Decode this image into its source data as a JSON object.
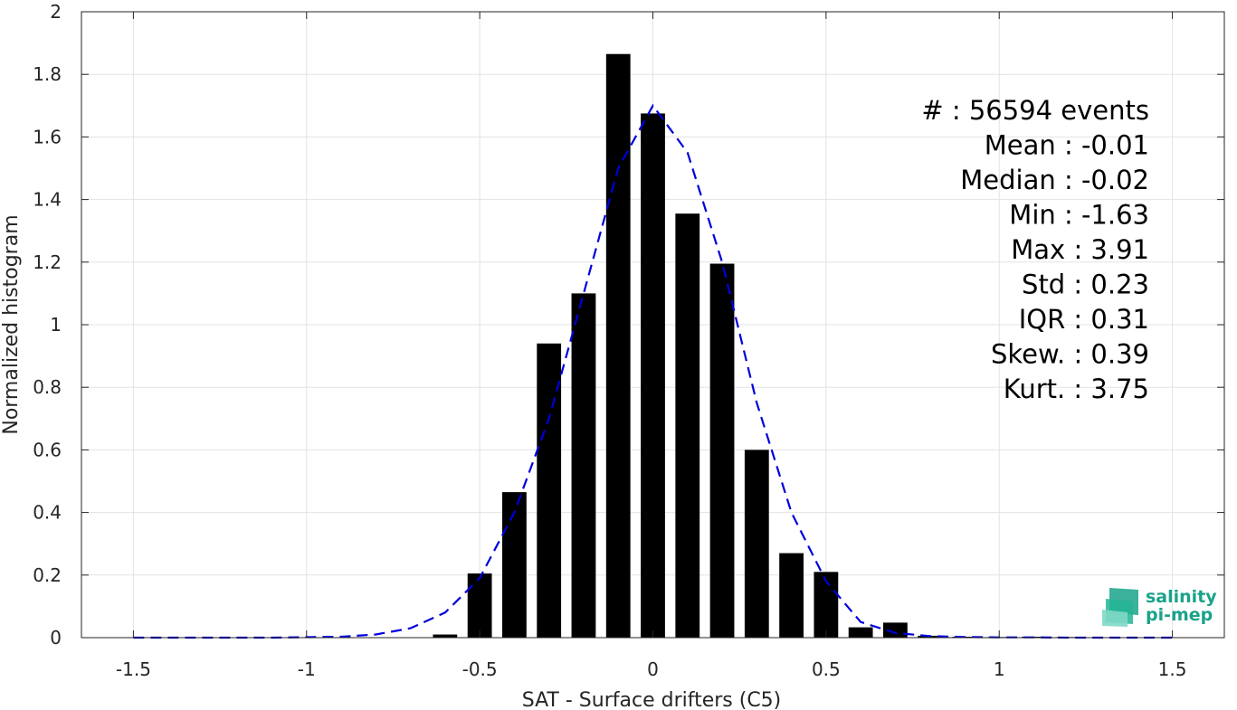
{
  "chart_data": {
    "type": "bar",
    "title": "",
    "xlabel": "SAT - Surface drifters (C5)",
    "ylabel": "Normalized histogram",
    "xlim": [
      -1.65,
      1.65
    ],
    "ylim": [
      0,
      2
    ],
    "xticks": [
      -1.5,
      -1,
      -0.5,
      0,
      0.5,
      1,
      1.5
    ],
    "xtick_labels": [
      "-1.5",
      "-1",
      "-0.5",
      "0",
      "0.5",
      "1",
      "1.5"
    ],
    "yticks": [
      0,
      0.2,
      0.4,
      0.6,
      0.8,
      1,
      1.2,
      1.4,
      1.6,
      1.8,
      2
    ],
    "ytick_labels": [
      "0",
      "0.2",
      "0.4",
      "0.6",
      "0.8",
      "1",
      "1.2",
      "1.4",
      "1.6",
      "1.8",
      "2"
    ],
    "grid": true,
    "bar_color": "#000000",
    "bar_width": 0.07,
    "bars": [
      {
        "x": -0.6,
        "y": 0.01
      },
      {
        "x": -0.5,
        "y": 0.205
      },
      {
        "x": -0.4,
        "y": 0.465
      },
      {
        "x": -0.3,
        "y": 0.94
      },
      {
        "x": -0.2,
        "y": 1.1
      },
      {
        "x": -0.1,
        "y": 1.865
      },
      {
        "x": 0.0,
        "y": 1.675
      },
      {
        "x": 0.1,
        "y": 1.355
      },
      {
        "x": 0.2,
        "y": 1.195
      },
      {
        "x": 0.3,
        "y": 0.6
      },
      {
        "x": 0.4,
        "y": 0.27
      },
      {
        "x": 0.5,
        "y": 0.21
      },
      {
        "x": 0.6,
        "y": 0.033
      },
      {
        "x": 0.7,
        "y": 0.048
      },
      {
        "x": 0.8,
        "y": 0.006
      },
      {
        "x": 0.9,
        "y": 0.003
      },
      {
        "x": 1.0,
        "y": 0.002
      },
      {
        "x": 1.1,
        "y": 0.003
      },
      {
        "x": 1.2,
        "y": 0.002
      },
      {
        "x": 1.3,
        "y": 0.001
      },
      {
        "x": 1.4,
        "y": 0.001
      },
      {
        "x": 1.5,
        "y": 0.0
      }
    ],
    "fit_line": {
      "style": "dashed",
      "color": "#0000dd",
      "x": [
        -1.5,
        -1.3,
        -1.1,
        -0.9,
        -0.8,
        -0.7,
        -0.6,
        -0.5,
        -0.4,
        -0.3,
        -0.2,
        -0.1,
        0.0,
        0.1,
        0.2,
        0.3,
        0.4,
        0.5,
        0.6,
        0.7,
        0.8,
        0.9,
        1.0,
        1.1,
        1.2,
        1.3,
        1.4,
        1.5
      ],
      "y": [
        0.0,
        0.0,
        0.0,
        0.003,
        0.01,
        0.03,
        0.08,
        0.19,
        0.4,
        0.7,
        1.1,
        1.5,
        1.7,
        1.55,
        1.2,
        0.75,
        0.4,
        0.18,
        0.05,
        0.015,
        0.005,
        0.002,
        0.001,
        0.001,
        0.0,
        0.0,
        0.0,
        0.0
      ]
    },
    "stats": [
      "#  : 56594 events",
      "Mean : -0.01",
      "Median : -0.02",
      "Min : -1.63",
      "Max : 3.91",
      "Std : 0.23",
      "IQR : 0.31",
      "Skew. : 0.39",
      "Kurt. : 3.75"
    ]
  },
  "logo": {
    "line1": "salinity",
    "line2": "pi-mep",
    "color": "#1aa38a"
  }
}
